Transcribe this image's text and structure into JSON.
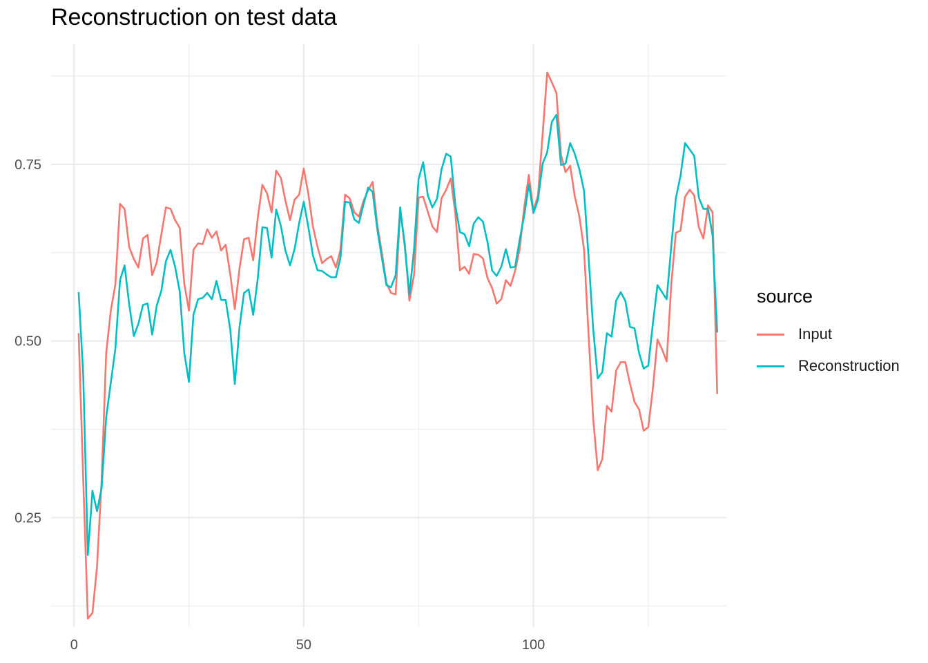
{
  "chart_data": {
    "type": "line",
    "title": "Reconstruction on test data",
    "xlabel": "",
    "ylabel": "",
    "xlim": [
      -5,
      142
    ],
    "ylim": [
      0.095,
      0.92
    ],
    "x_ticks": [
      0,
      50,
      100
    ],
    "y_ticks": [
      0.25,
      0.5,
      0.75
    ],
    "x_tick_labels": [
      "0",
      "50",
      "100"
    ],
    "y_tick_labels": [
      "0.25",
      "0.50",
      "0.75"
    ],
    "grid": true,
    "legend": {
      "title": "source",
      "position": "right"
    },
    "series": [
      {
        "name": "Input",
        "color": "#F8766D",
        "x_start": 1,
        "values": [
          0.511,
          0.302,
          0.107,
          0.115,
          0.18,
          0.304,
          0.483,
          0.543,
          0.58,
          0.694,
          0.687,
          0.633,
          0.616,
          0.604,
          0.645,
          0.65,
          0.593,
          0.611,
          0.651,
          0.689,
          0.687,
          0.671,
          0.66,
          0.581,
          0.543,
          0.629,
          0.638,
          0.637,
          0.658,
          0.646,
          0.655,
          0.628,
          0.636,
          0.594,
          0.545,
          0.602,
          0.644,
          0.646,
          0.614,
          0.675,
          0.721,
          0.709,
          0.682,
          0.741,
          0.731,
          0.699,
          0.671,
          0.7,
          0.707,
          0.744,
          0.708,
          0.662,
          0.633,
          0.61,
          0.616,
          0.62,
          0.604,
          0.629,
          0.707,
          0.702,
          0.682,
          0.676,
          0.698,
          0.713,
          0.725,
          0.665,
          0.625,
          0.582,
          0.568,
          0.566,
          0.684,
          0.638,
          0.557,
          0.593,
          0.703,
          0.704,
          0.683,
          0.662,
          0.654,
          0.702,
          0.714,
          0.73,
          0.68,
          0.6,
          0.605,
          0.595,
          0.623,
          0.622,
          0.617,
          0.589,
          0.575,
          0.553,
          0.559,
          0.586,
          0.578,
          0.599,
          0.63,
          0.69,
          0.735,
          0.684,
          0.706,
          0.793,
          0.88,
          0.866,
          0.851,
          0.763,
          0.739,
          0.748,
          0.705,
          0.676,
          0.63,
          0.509,
          0.39,
          0.317,
          0.333,
          0.408,
          0.4,
          0.458,
          0.47,
          0.47,
          0.44,
          0.414,
          0.403,
          0.373,
          0.378,
          0.433,
          0.502,
          0.488,
          0.471,
          0.58,
          0.653,
          0.656,
          0.704,
          0.714,
          0.706,
          0.661,
          0.645,
          0.692,
          0.682,
          0.425
        ]
      },
      {
        "name": "Reconstruction",
        "color": "#00BFC4",
        "x_start": 1,
        "values": [
          0.569,
          0.451,
          0.197,
          0.288,
          0.259,
          0.292,
          0.392,
          0.441,
          0.489,
          0.586,
          0.607,
          0.552,
          0.507,
          0.524,
          0.551,
          0.553,
          0.509,
          0.55,
          0.571,
          0.613,
          0.629,
          0.605,
          0.57,
          0.483,
          0.442,
          0.537,
          0.559,
          0.561,
          0.568,
          0.559,
          0.585,
          0.558,
          0.558,
          0.516,
          0.439,
          0.519,
          0.568,
          0.573,
          0.537,
          0.589,
          0.661,
          0.66,
          0.618,
          0.686,
          0.663,
          0.628,
          0.607,
          0.63,
          0.667,
          0.697,
          0.661,
          0.621,
          0.6,
          0.599,
          0.594,
          0.59,
          0.59,
          0.618,
          0.697,
          0.696,
          0.672,
          0.667,
          0.693,
          0.717,
          0.711,
          0.658,
          0.618,
          0.579,
          0.576,
          0.593,
          0.689,
          0.633,
          0.566,
          0.629,
          0.729,
          0.753,
          0.706,
          0.689,
          0.701,
          0.743,
          0.765,
          0.761,
          0.692,
          0.654,
          0.651,
          0.634,
          0.666,
          0.675,
          0.669,
          0.64,
          0.6,
          0.592,
          0.605,
          0.63,
          0.604,
          0.605,
          0.643,
          0.678,
          0.722,
          0.681,
          0.7,
          0.751,
          0.767,
          0.81,
          0.82,
          0.749,
          0.751,
          0.78,
          0.765,
          0.743,
          0.713,
          0.619,
          0.517,
          0.447,
          0.456,
          0.511,
          0.506,
          0.557,
          0.569,
          0.557,
          0.52,
          0.518,
          0.483,
          0.461,
          0.465,
          0.525,
          0.579,
          0.569,
          0.559,
          0.634,
          0.702,
          0.733,
          0.78,
          0.771,
          0.762,
          0.703,
          0.687,
          0.687,
          0.649,
          0.512
        ]
      }
    ]
  }
}
